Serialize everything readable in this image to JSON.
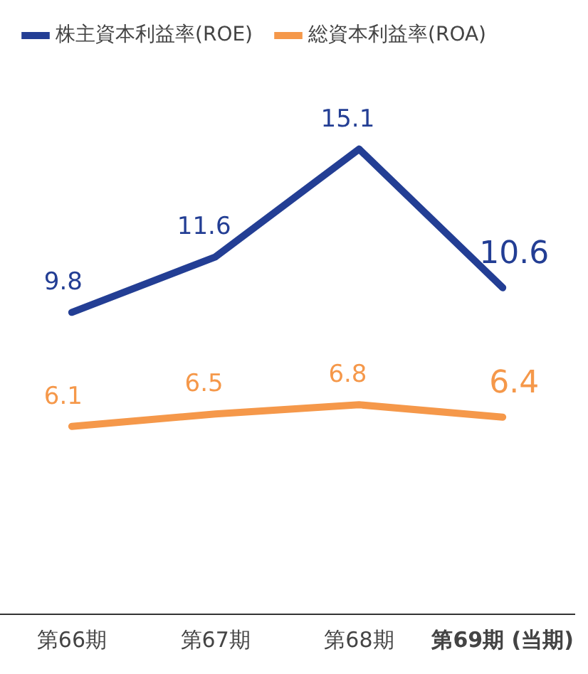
{
  "chart_data": {
    "type": "line",
    "categories": [
      "第66期",
      "第67期",
      "第68期",
      "第69期 (当期)"
    ],
    "series": [
      {
        "name": "株主資本利益率(ROE)",
        "color": "#233e94",
        "values": [
          9.8,
          11.6,
          15.1,
          10.6
        ]
      },
      {
        "name": "総資本利益率(ROA)",
        "color": "#f5984a",
        "values": [
          6.1,
          6.5,
          6.8,
          6.4
        ]
      }
    ],
    "tick_labels": "x",
    "data_labels": true,
    "legend": "top left",
    "grid": false,
    "marker": "none",
    "line_style": "solid"
  }
}
